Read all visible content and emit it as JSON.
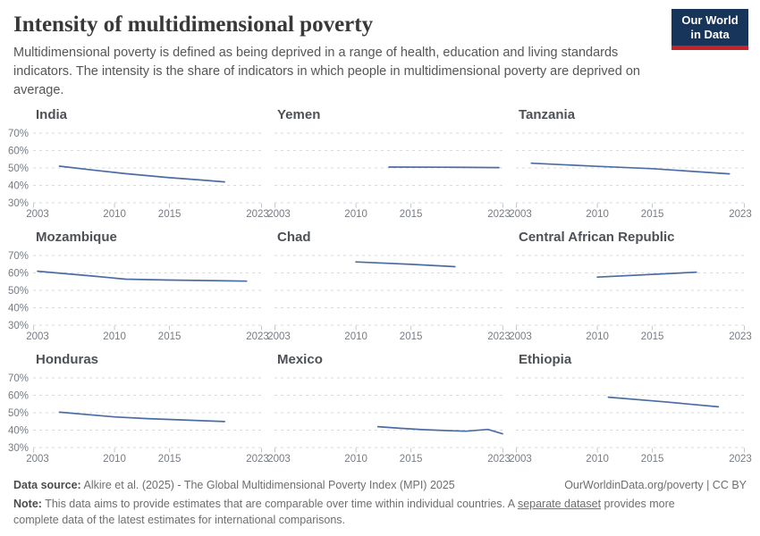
{
  "header": {
    "title": "Intensity of multidimensional poverty",
    "subtitle": "Multidimensional poverty is defined as being deprived in a range of health, education and living standards indicators. The intensity is the share of indicators in which people in multidimensional poverty are deprived on average.",
    "logo": {
      "line1": "Our World",
      "line2": "in Data",
      "bg_color": "#17345a",
      "bar_color": "#c5232b"
    }
  },
  "chart_data": {
    "type": "line",
    "layout": "small-multiples-3x3",
    "title": "Intensity of multidimensional poverty",
    "ylabel": "",
    "xlabel": "",
    "x_range": [
      2003,
      2023
    ],
    "y_range": [
      30,
      70
    ],
    "x_ticks": [
      2003,
      2010,
      2015,
      2023
    ],
    "y_tick_labels": [
      "70%",
      "60%",
      "50%",
      "40%",
      "30%"
    ],
    "grid": "dashed-horizontal",
    "legend": "none",
    "line_color": "#4b6da3",
    "grid_color": "#d7dade",
    "tick_color": "#c3c7cb",
    "axis_label_color": "#767c83",
    "panels": [
      {
        "title": "India",
        "points": [
          [
            2005,
            51.0
          ],
          [
            2008,
            48.8
          ],
          [
            2011,
            46.7
          ],
          [
            2015,
            44.4
          ],
          [
            2018,
            43.0
          ],
          [
            2020,
            42.0
          ]
        ]
      },
      {
        "title": "Yemen",
        "points": [
          [
            2013,
            50.5
          ],
          [
            2018,
            50.4
          ],
          [
            2023,
            50.2
          ]
        ]
      },
      {
        "title": "Tanzania",
        "points": [
          [
            2004,
            52.7
          ],
          [
            2010,
            50.9
          ],
          [
            2015,
            49.6
          ],
          [
            2022,
            46.6
          ]
        ]
      },
      {
        "title": "Mozambique",
        "points": [
          [
            2003,
            61.0
          ],
          [
            2008,
            58.2
          ],
          [
            2011,
            56.4
          ],
          [
            2015,
            55.9
          ],
          [
            2022,
            55.3
          ]
        ]
      },
      {
        "title": "Chad",
        "points": [
          [
            2010,
            66.3
          ],
          [
            2015,
            64.9
          ],
          [
            2019,
            63.6
          ]
        ]
      },
      {
        "title": "Central African Republic",
        "points": [
          [
            2010,
            57.6
          ],
          [
            2019,
            60.4
          ]
        ]
      },
      {
        "title": "Honduras",
        "points": [
          [
            2005,
            50.3
          ],
          [
            2010,
            47.6
          ],
          [
            2013,
            46.6
          ],
          [
            2016,
            45.9
          ],
          [
            2020,
            44.9
          ]
        ]
      },
      {
        "title": "Mexico",
        "points": [
          [
            2012,
            42.0
          ],
          [
            2014,
            41.1
          ],
          [
            2016,
            40.3
          ],
          [
            2018,
            39.8
          ],
          [
            2020,
            39.4
          ],
          [
            2022,
            40.4
          ],
          [
            2024,
            37.9
          ]
        ]
      },
      {
        "title": "Ethiopia",
        "points": [
          [
            2011,
            58.9
          ],
          [
            2016,
            56.3
          ],
          [
            2021,
            53.4
          ]
        ]
      }
    ]
  },
  "footer": {
    "source_label": "Data source:",
    "source_text": " Alkire et al. (2025) - The Global Multidimensional Poverty Index (MPI) 2025",
    "rights": "OurWorldinData.org/poverty | CC BY",
    "note_label": "Note:",
    "note_before_link": " This data aims to provide estimates that are comparable over time within individual countries. A ",
    "note_link": "separate dataset",
    "note_after_link": " provides more complete data of the latest estimates for international comparisons."
  }
}
